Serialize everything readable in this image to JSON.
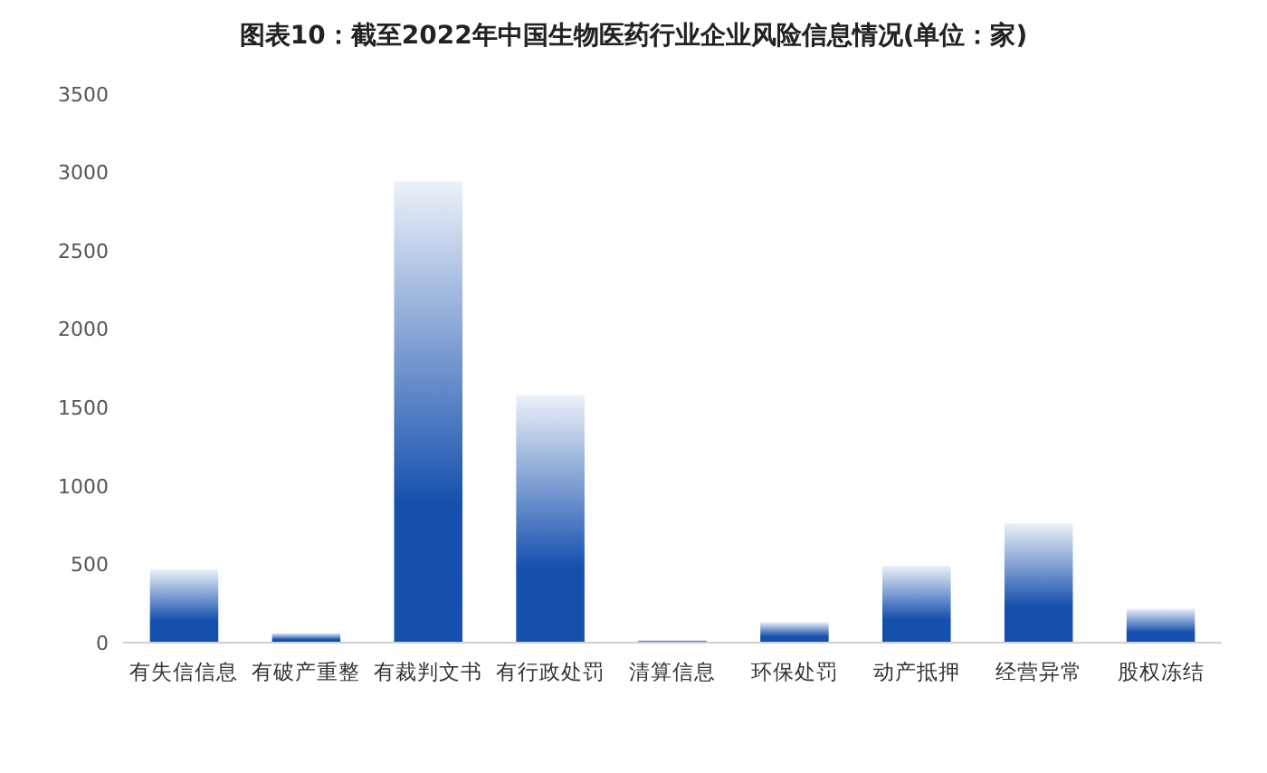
{
  "chart_data": {
    "type": "bar",
    "title": "图表10：截至2022年中国生物医药行业企业风险信息情况(单位：家)",
    "categories": [
      "有失信信息",
      "有破产重整",
      "有裁判文书",
      "有行政处罚",
      "清算信息",
      "环保处罚",
      "动产抵押",
      "经营异常",
      "股权冻结"
    ],
    "values": [
      468,
      62,
      2943,
      1580,
      16,
      132,
      491,
      761,
      217
    ],
    "color": "#1550ae",
    "ylim": [
      0,
      3500
    ],
    "yticks": [
      0,
      500,
      1000,
      1500,
      2000,
      2500,
      3000,
      3500
    ],
    "grid": false
  }
}
